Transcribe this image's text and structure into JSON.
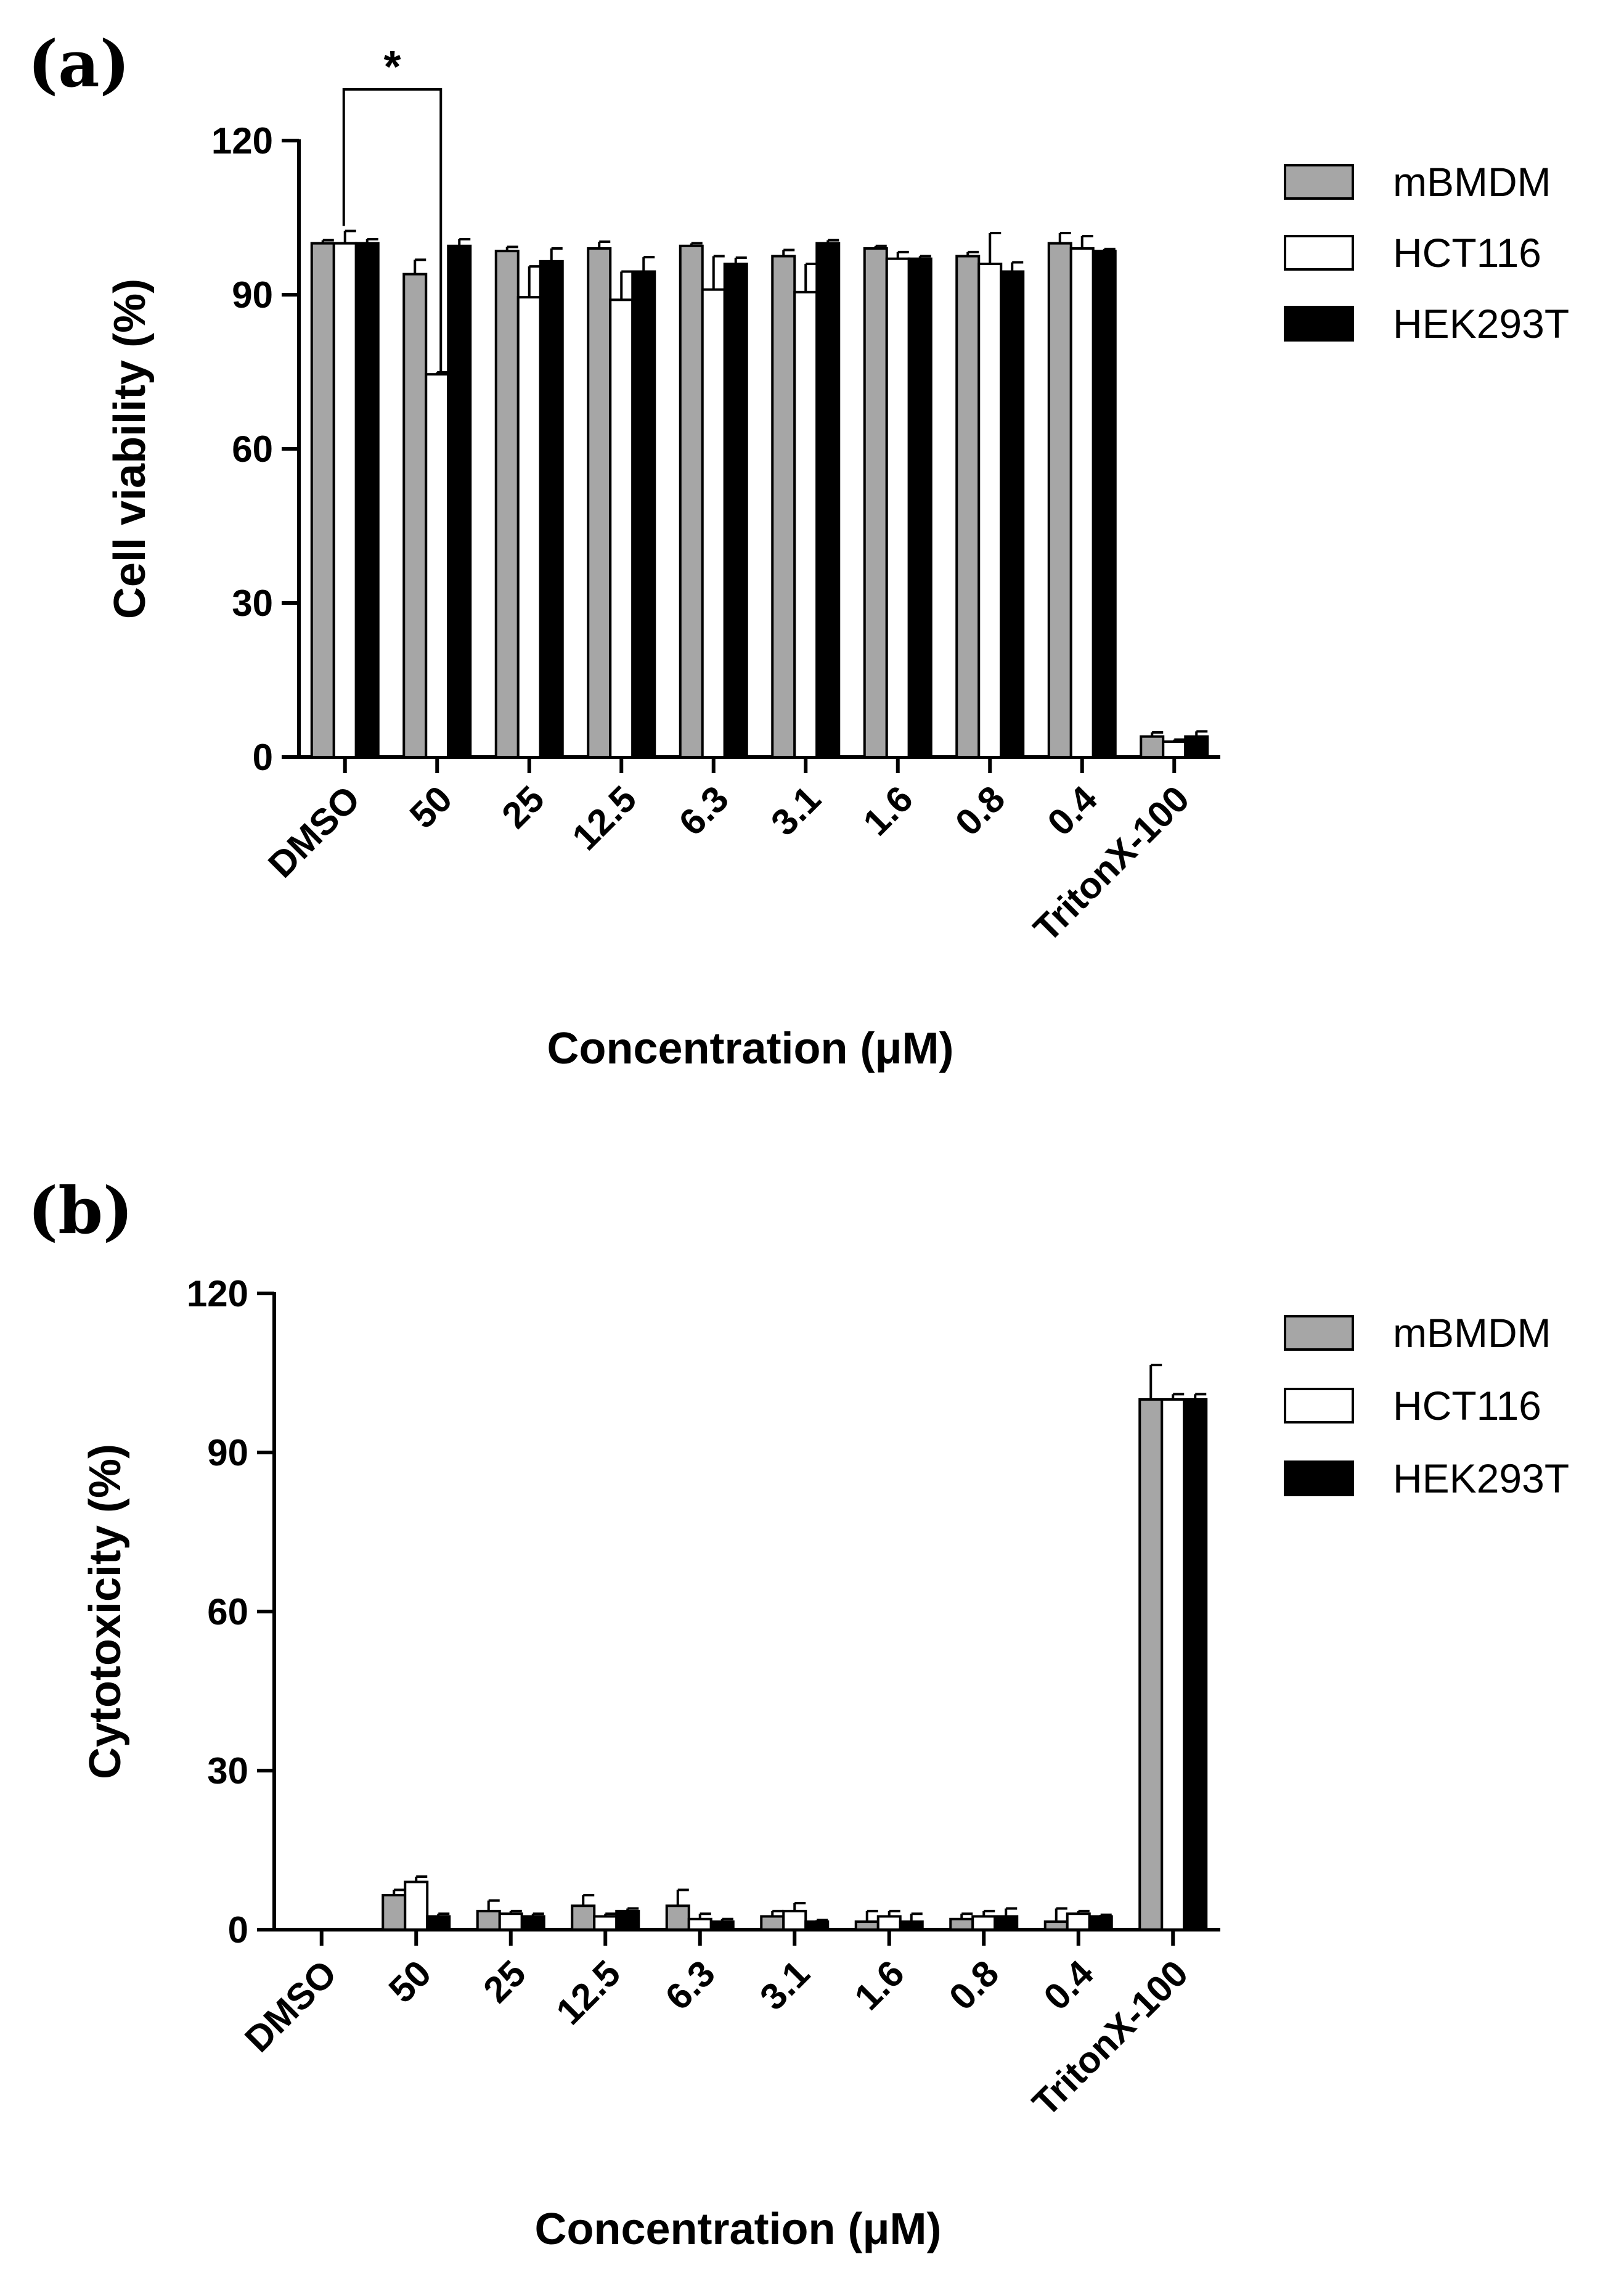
{
  "chart_data": [
    {
      "panel": "(a)",
      "type": "bar",
      "categories": [
        "DMSO",
        "50",
        "25",
        "12.5",
        "6.3",
        "3.1",
        "1.6",
        "0.8",
        "0.4",
        "TritonX-100"
      ],
      "series": [
        {
          "name": "mBMDM",
          "color": "#a6a6a6",
          "values": [
            100,
            94,
            98.5,
            99,
            99.5,
            97.5,
            99,
            97.5,
            100,
            4
          ],
          "errors": [
            0.6,
            2.8,
            0.8,
            1.3,
            0.5,
            1.2,
            0.5,
            0.8,
            2,
            0.8
          ]
        },
        {
          "name": "HCT116",
          "color": "#ffffff",
          "values": [
            100,
            74.5,
            89.5,
            89,
            91,
            90.5,
            97,
            96,
            99,
            3
          ],
          "errors": [
            2.4,
            0.4,
            6,
            5.5,
            6.5,
            5.5,
            1.3,
            6,
            2.4,
            0.4
          ]
        },
        {
          "name": "HEK293T",
          "color": "#000000",
          "values": [
            100,
            99.5,
            96.5,
            94.5,
            96,
            100,
            97,
            94.5,
            98.5,
            4
          ],
          "errors": [
            0.8,
            1.3,
            2.5,
            2.8,
            1.2,
            0.6,
            0.5,
            1.8,
            0.4,
            1
          ]
        }
      ],
      "ylabel": "Cell viability (%)",
      "xlabel": "Concentration (μM)",
      "ylim": [
        0,
        120
      ],
      "yticks": [
        "0",
        "30",
        "60",
        "90",
        "120"
      ],
      "legend": "top-right",
      "annotations": [
        {
          "text": "*",
          "from_category": "DMSO",
          "to_category": "50"
        }
      ]
    },
    {
      "panel": "(b)",
      "type": "bar",
      "categories": [
        "DMSO",
        "50",
        "25",
        "12.5",
        "6.3",
        "3.1",
        "1.6",
        "0.8",
        "0.4",
        "TritonX-100"
      ],
      "series": [
        {
          "name": "mBMDM",
          "color": "#a6a6a6",
          "values": [
            0,
            6.5,
            3.5,
            4.5,
            4.5,
            2.5,
            1.5,
            2,
            1.5,
            100
          ],
          "errors": [
            0,
            1,
            2,
            2,
            3,
            1,
            2,
            1,
            2.5,
            6.5
          ]
        },
        {
          "name": "HCT116",
          "color": "#ffffff",
          "values": [
            0,
            9,
            3,
            2.5,
            2,
            3.5,
            2.5,
            2.5,
            3,
            100
          ],
          "errors": [
            0,
            1,
            0.5,
            0.5,
            1,
            1.5,
            1,
            1,
            0.5,
            1
          ]
        },
        {
          "name": "HEK293T",
          "color": "#000000",
          "values": [
            0,
            2.5,
            2.5,
            3.5,
            1.5,
            1.5,
            1.5,
            2.5,
            2.5,
            100
          ],
          "errors": [
            0,
            0.5,
            0.5,
            0.5,
            0.5,
            0.3,
            1.5,
            1.5,
            0.3,
            1
          ]
        }
      ],
      "ylabel": "Cytotoxicity (%)",
      "xlabel": "Concentration (μM)",
      "ylim": [
        0,
        120
      ],
      "yticks": [
        "0",
        "30",
        "60",
        "90",
        "120"
      ],
      "legend": "top-right"
    }
  ]
}
